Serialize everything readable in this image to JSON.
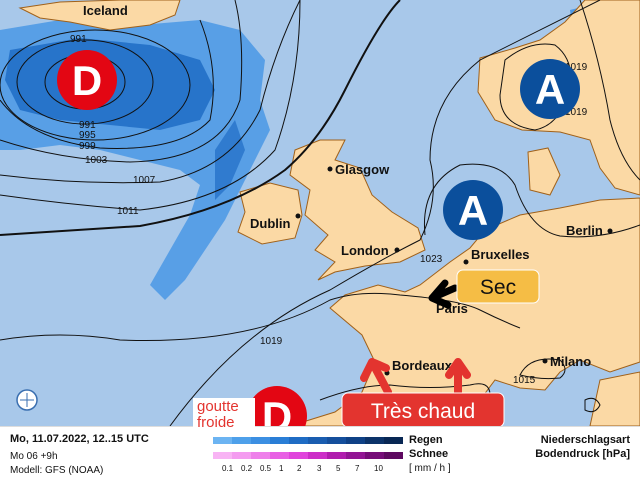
{
  "map": {
    "cities": {
      "iceland": "Iceland",
      "glasgow": "Glasgow",
      "dublin": "Dublin",
      "london": "London",
      "bruxelles": "Bruxelles",
      "berlin": "Berlin",
      "paris": "Paris",
      "bordeaux": "Bordeaux",
      "milano": "Milano"
    },
    "isobars": {
      "i991a": "991",
      "i991b": "991",
      "i995": "995",
      "i999": "999",
      "i1003": "1003",
      "i1007": "1007",
      "i1011": "1011",
      "i1019a": "1019",
      "i1019b": "1019",
      "i1019c": "1019",
      "i1023": "1023",
      "i1015": "1015"
    },
    "symbols": {
      "low_letter": "D",
      "high_letter": "A"
    },
    "annotations": {
      "sec": "Sec",
      "tres_chaud": "Très chaud",
      "goutte_froide": "goutte froide"
    },
    "colors": {
      "ocean": "#a8c8ea",
      "land": "#fbd9a5",
      "low": "#e30613",
      "high": "#0b4f9c",
      "sec": "#f5bd45",
      "chaud": "#e3342f"
    }
  },
  "legend": {
    "date": "Mo, 11.07.2022, 12..15 UTC",
    "run": "Mo 06 +9h",
    "model": "Modell: GFS (NOAA)",
    "rain_label": "Regen",
    "snow_label": "Schnee",
    "unit": "[ mm / h ]",
    "ticks": [
      "0.1",
      "0.2",
      "0.5",
      "1",
      "2",
      "3",
      "5",
      "7",
      "10"
    ],
    "rain_colors": [
      "#6cb4f2",
      "#4ea0ea",
      "#3c8fe2",
      "#2a7ed6",
      "#1f6cc4",
      "#1a5db0",
      "#154f9c",
      "#0f4186",
      "#0c3369",
      "#082754"
    ],
    "snow_colors": [
      "#f8b4f4",
      "#f49cf0",
      "#ee80ea",
      "#e860e4",
      "#e044dc",
      "#cc2ec8",
      "#b01cae",
      "#921494",
      "#760c78",
      "#5e0860"
    ],
    "title1": "Niederschlagsart",
    "title2": "Bodendruck [hPa]"
  }
}
